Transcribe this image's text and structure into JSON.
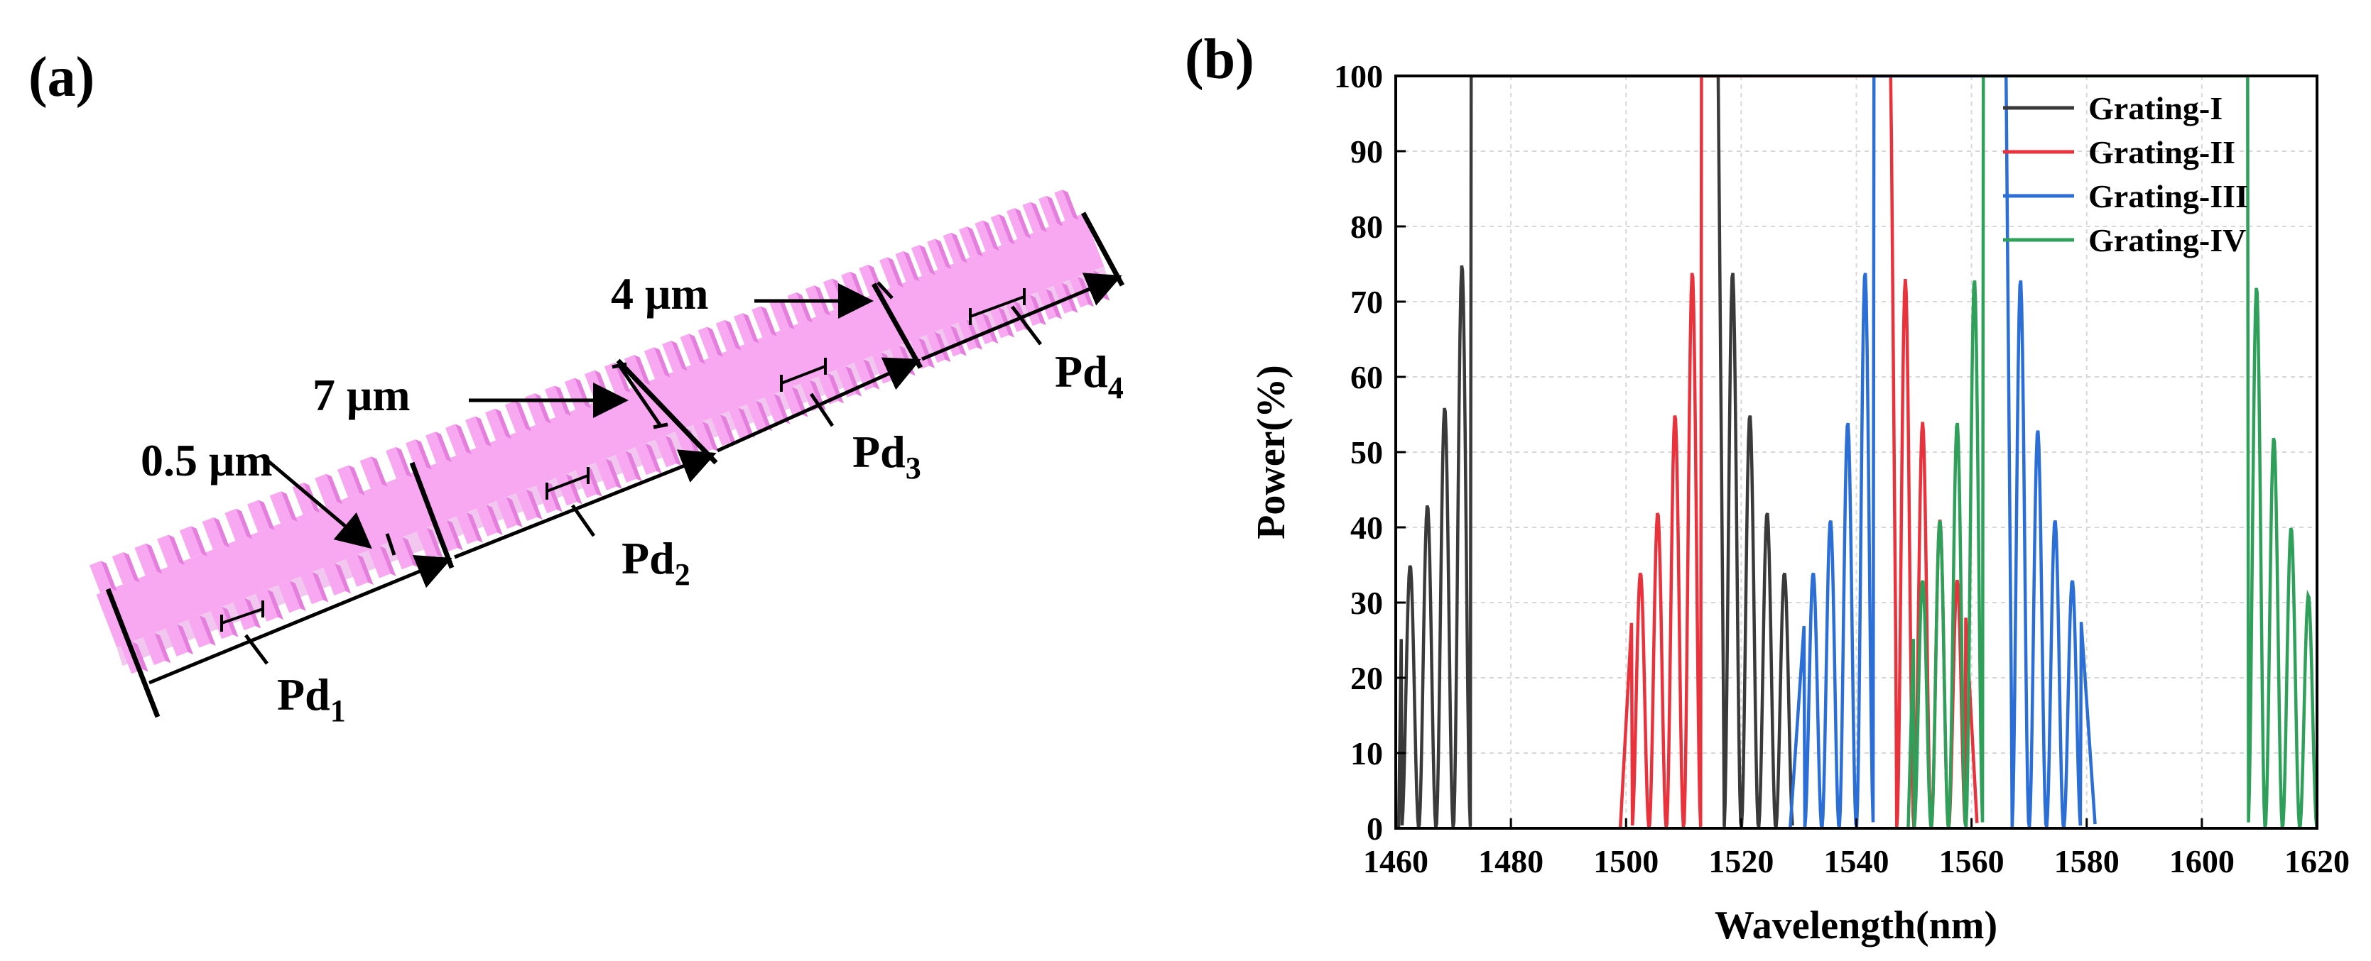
{
  "panel_a": {
    "label": "(a)",
    "annotations": {
      "t4um": "4 μm",
      "t7um": "7 μm",
      "t05um": "0.5 μm"
    },
    "sections": [
      {
        "base": "Pd",
        "sub": "1"
      },
      {
        "base": "Pd",
        "sub": "2"
      },
      {
        "base": "Pd",
        "sub": "3"
      },
      {
        "base": "Pd",
        "sub": "4"
      }
    ],
    "colors": {
      "waveguide": "#f7a8f0",
      "waveguide_dark": "#e57fdd",
      "waveguide_side": "#f2c7ef"
    }
  },
  "panel_b": {
    "label": "(b)"
  },
  "chart_data": {
    "type": "line",
    "xlabel": "Wavelength(nm)",
    "ylabel": "Power(%)",
    "xlim": [
      1460,
      1620
    ],
    "ylim": [
      0,
      100
    ],
    "xticks": [
      1460,
      1480,
      1500,
      1520,
      1540,
      1560,
      1580,
      1600,
      1620
    ],
    "yticks": [
      0,
      10,
      20,
      30,
      40,
      50,
      60,
      70,
      80,
      90,
      100
    ],
    "grid": true,
    "legend_position": "top-right",
    "series": [
      {
        "name": "Grating-I",
        "color": "#3a3a3a",
        "stop_start": 1473,
        "stop_end": 1516,
        "left_lobes": [
          [
            1471.5,
            75
          ],
          [
            1468.5,
            56
          ],
          [
            1465.5,
            43
          ],
          [
            1462.5,
            35
          ]
        ],
        "right_lobes": [
          [
            1518.5,
            74
          ],
          [
            1521.5,
            55
          ],
          [
            1524.5,
            42
          ],
          [
            1527.5,
            34
          ]
        ],
        "left_edge": 1460.5,
        "right_edge": 1529
      },
      {
        "name": "Grating-II",
        "color": "#e8323c",
        "stop_start": 1513,
        "stop_end": 1546,
        "left_lobes": [
          [
            1511.5,
            74
          ],
          [
            1508.5,
            55
          ],
          [
            1505.5,
            42
          ],
          [
            1502.5,
            34
          ]
        ],
        "right_lobes": [
          [
            1548.5,
            73
          ],
          [
            1551.5,
            54
          ],
          [
            1554.5,
            41
          ],
          [
            1557.5,
            33
          ]
        ],
        "left_edge": 1499,
        "right_edge": 1561
      },
      {
        "name": "Grating-III",
        "color": "#2b6fd6",
        "stop_start": 1543,
        "stop_end": 1566,
        "left_lobes": [
          [
            1541.5,
            74
          ],
          [
            1538.5,
            54
          ],
          [
            1535.5,
            41
          ],
          [
            1532.5,
            34
          ]
        ],
        "right_lobes": [
          [
            1568.5,
            73
          ],
          [
            1571.5,
            53
          ],
          [
            1574.5,
            41
          ],
          [
            1577.5,
            33
          ]
        ],
        "left_edge": 1528.5,
        "right_edge": 1581.5
      },
      {
        "name": "Grating-IV",
        "color": "#2fa05a",
        "stop_start": 1562,
        "stop_end": 1608,
        "left_lobes": [
          [
            1560.5,
            73
          ],
          [
            1557.5,
            54
          ],
          [
            1554.5,
            41
          ],
          [
            1551.5,
            33
          ]
        ],
        "right_lobes": [
          [
            1609.5,
            72
          ],
          [
            1612.5,
            52
          ],
          [
            1615.5,
            40
          ],
          [
            1618.5,
            31
          ]
        ],
        "left_edge": 1549,
        "right_edge": 1620
      }
    ]
  }
}
